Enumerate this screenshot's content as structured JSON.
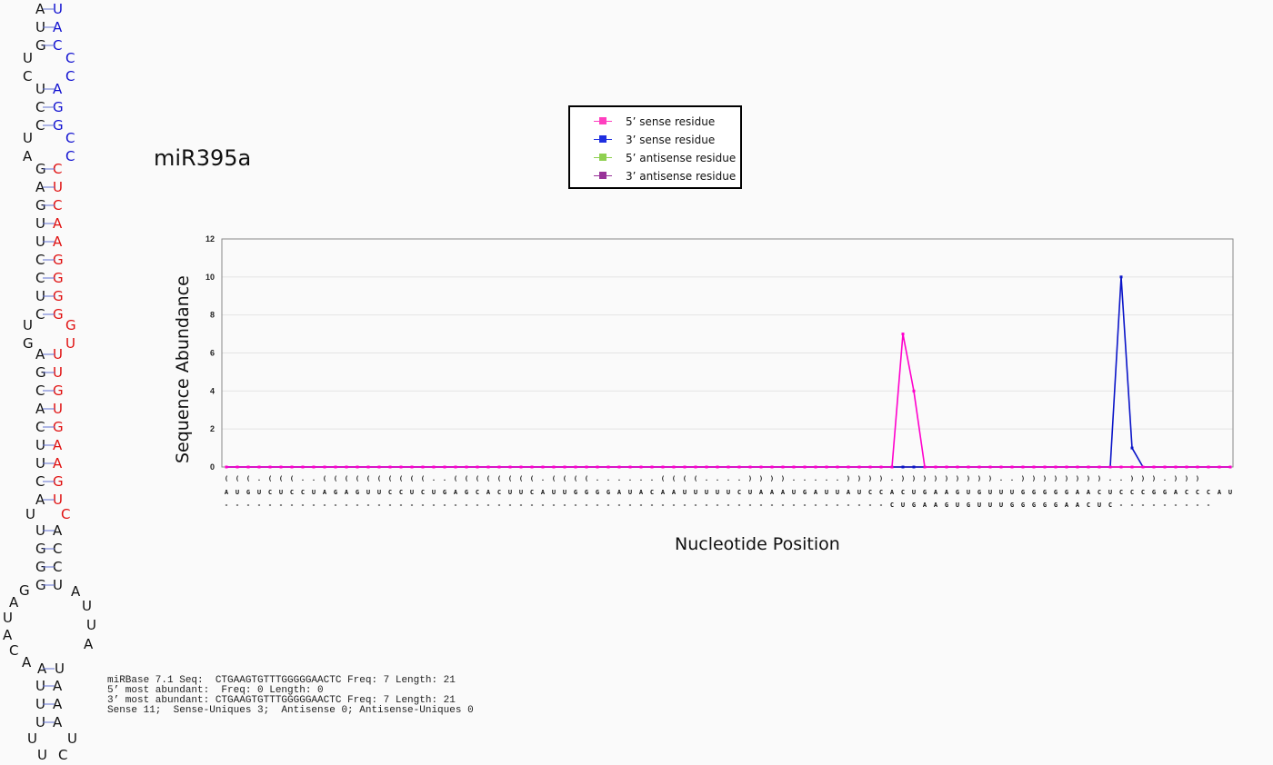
{
  "title": "miR395a",
  "legend": [
    {
      "label": "5’ sense residue",
      "color": "#ff3fbf"
    },
    {
      "label": "3’ sense residue",
      "color": "#1f2fe0"
    },
    {
      "label": "5’ antisense residue",
      "color": "#8fd050"
    },
    {
      "label": "3’ antisense residue",
      "color": "#993399"
    }
  ],
  "stem_loop": {
    "black": "#111111",
    "blue": "#1010d0",
    "red": "#e01010"
  },
  "stats": {
    "line1": "miRBase 7.1 Seq:  CTGAAGTGTTTGGGGGAACTC Freq: 7 Length: 21",
    "line2": "5’ most abundant:  Freq: 0 Length: 0",
    "line3": "3’ most abundant: CTGAAGTGTTTGGGGGAACTC Freq: 7 Length: 21",
    "line4": "Sense 11;  Sense-Uniques 3;  Antisense 0; Antisense-Uniques 0"
  },
  "chart_data": {
    "type": "line",
    "xlabel": "Nucleotide Position",
    "ylabel": "Sequence Abundance",
    "ylim": [
      0,
      12
    ],
    "yticks": [
      "0",
      "2",
      "4",
      "6",
      "8",
      "10",
      "12"
    ],
    "grid": true,
    "legend_position": "top",
    "structure": "(((.(((..((((((((((..((((((((.((((......((((....)))).....)))).)))))))))..))))))))..))).)))",
    "sequence": "AUGUCUCCUAGAGUUCCUCUGAGCACUUCAUUGGGGAUACAAUUUUUCUAAAUGAUUAUCCACUGAAGUGUUUGGGGGAACUCCCGGACCCAU",
    "mature": "-------------------------------------------------------------CUGAAGUGUUUGGGGGAACUC---------",
    "series": [
      {
        "name": "5’ sense residue",
        "color": "#ff00cc",
        "nonzero": {
          "62": 7,
          "63": 4
        }
      },
      {
        "name": "3’ sense residue",
        "color": "#0a14c8",
        "nonzero": {
          "82": 10,
          "83": 1
        }
      },
      {
        "name": "5’ antisense residue",
        "color": "#8fd050",
        "nonzero": {}
      },
      {
        "name": "3’ antisense residue",
        "color": "#993399",
        "nonzero": {}
      }
    ]
  }
}
